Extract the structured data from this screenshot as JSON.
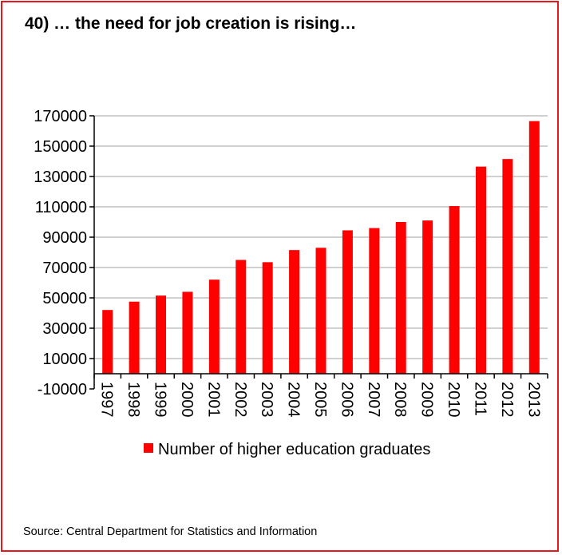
{
  "title": "40) … the need for job creation is rising…",
  "source": "Source: Central Department for Statistics and Information",
  "colors": {
    "bar": "#ff0000",
    "border": "#e8181f",
    "grid": "#c0c0c0",
    "axis": "#000000"
  },
  "chart_data": {
    "type": "bar",
    "categories": [
      "1997",
      "1998",
      "1999",
      "2000",
      "2001",
      "2002",
      "2003",
      "2004",
      "2005",
      "2006",
      "2007",
      "2008",
      "2009",
      "2010",
      "2011",
      "2012",
      "2013"
    ],
    "series": [
      {
        "name": "Number of higher education graduates",
        "values": [
          42000,
          47500,
          51500,
          54000,
          62000,
          75000,
          73500,
          81500,
          83000,
          94500,
          96000,
          100000,
          101000,
          110500,
          136500,
          141500,
          166500
        ]
      }
    ],
    "yticks": [
      -10000,
      10000,
      30000,
      50000,
      70000,
      90000,
      110000,
      130000,
      150000,
      170000
    ],
    "ylim": [
      -10000,
      170000
    ],
    "grid": true,
    "legend": "bottom"
  }
}
